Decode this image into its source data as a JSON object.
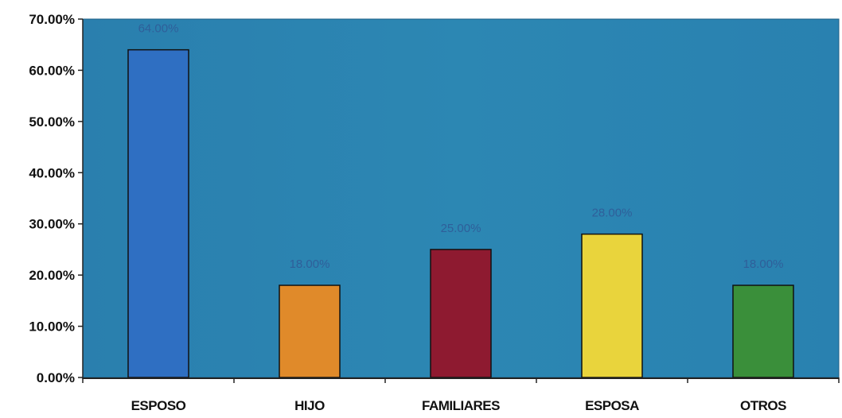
{
  "chart_data": {
    "type": "bar",
    "title": "",
    "xlabel": "",
    "ylabel": "",
    "categories": [
      "ESPOSO",
      "HIJO",
      "FAMILIARES",
      "ESPOSA",
      "OTROS"
    ],
    "values": [
      64,
      18,
      25,
      28,
      18
    ],
    "value_labels": [
      "64.00%",
      "18.00%",
      "25.00%",
      "28.00%",
      "18.00%"
    ],
    "bar_colors": [
      "#2f6fc2",
      "#e08a2a",
      "#8e1a30",
      "#e9d43c",
      "#3a8f3a"
    ],
    "ylim": [
      0,
      70
    ],
    "yticks": [
      0,
      10,
      20,
      30,
      40,
      50,
      60,
      70
    ],
    "ytick_labels": [
      "0.00%",
      "10.00%",
      "20.00%",
      "30.00%",
      "40.00%",
      "50.00%",
      "60.00%",
      "70.00%"
    ],
    "grid": false,
    "legend": "none",
    "plot_background": "#2b84b0"
  }
}
